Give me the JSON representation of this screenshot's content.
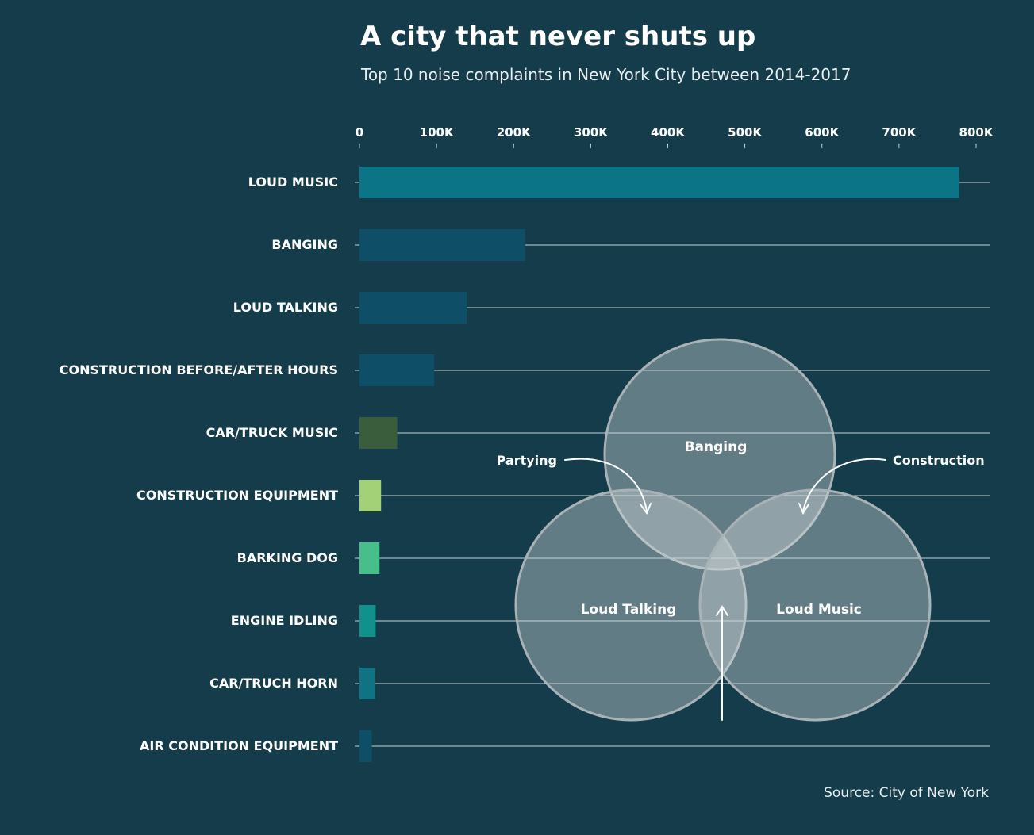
{
  "title": "A city that never shuts up",
  "subtitle": "Top 10 noise complaints in New York City between 2014-2017",
  "source": "Source: City of New York",
  "chart_data": {
    "type": "bar",
    "orientation": "horizontal",
    "categories": [
      "LOUD MUSIC",
      "BANGING",
      "LOUD TALKING",
      "CONSTRUCTION BEFORE/AFTER HOURS",
      "CAR/TRUCK MUSIC",
      "CONSTRUCTION EQUIPMENT",
      "BARKING DOG",
      "ENGINE IDLING",
      "CAR/TRUCH HORN",
      "AIR CONDITION EQUIPMENT"
    ],
    "values": [
      778000,
      215000,
      139000,
      97000,
      49000,
      28000,
      26000,
      21000,
      20000,
      16000
    ],
    "colors": [
      "#0b7587",
      "#0e4e66",
      "#0e4e66",
      "#0e4e66",
      "#3a5e3c",
      "#a2d177",
      "#48be8a",
      "#11918b",
      "#0f7384",
      "#0e4e66"
    ],
    "xlim": [
      0,
      800000
    ],
    "xticks": [
      0,
      100000,
      200000,
      300000,
      400000,
      500000,
      600000,
      700000,
      800000
    ],
    "xtick_labels": [
      "0",
      "100K",
      "200K",
      "300K",
      "400K",
      "500K",
      "600K",
      "700K",
      "800K"
    ],
    "axis_position": "top",
    "grid": true
  },
  "venn": {
    "sets": [
      "Banging",
      "Loud Talking",
      "Loud Music"
    ],
    "annotations": {
      "banging_talking": "Partying",
      "banging_music": "Construction"
    }
  },
  "colors": {
    "background": "#143c4b",
    "gridline": "#c9d3d7",
    "venn_fill": "#cfd7da",
    "venn_stroke": "#a9b3b7"
  }
}
